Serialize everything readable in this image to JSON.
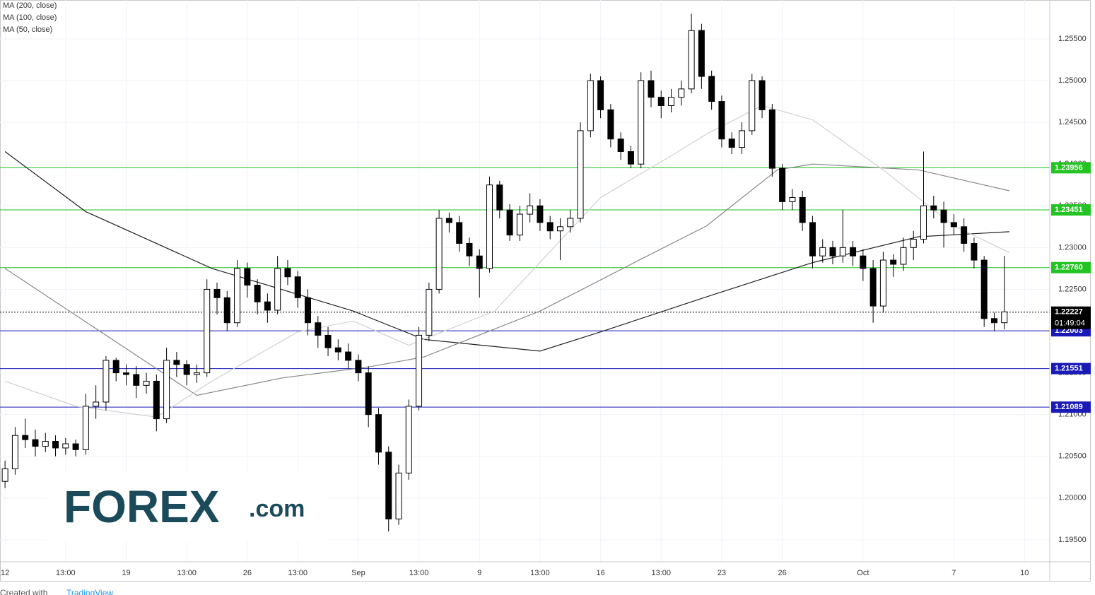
{
  "chart_data": {
    "type": "candlestick",
    "categories": [
      "12",
      null,
      null,
      null,
      null,
      null,
      "13:00",
      null,
      null,
      null,
      null,
      null,
      "19",
      null,
      null,
      null,
      null,
      null,
      "13:00",
      null,
      null,
      null,
      null,
      null,
      "26",
      null,
      null,
      null,
      null,
      "13:00",
      null,
      null,
      null,
      null,
      null,
      "Sep",
      null,
      null,
      null,
      null,
      null,
      "13:00",
      null,
      null,
      null,
      null,
      null,
      "9",
      null,
      null,
      null,
      null,
      null,
      "13:00",
      null,
      null,
      null,
      null,
      null,
      "16",
      null,
      null,
      null,
      null,
      null,
      "13:00",
      null,
      null,
      null,
      null,
      null,
      "23",
      null,
      null,
      null,
      null,
      null,
      "26",
      null,
      null,
      null,
      null,
      null,
      null,
      null,
      "Oct",
      null,
      null,
      null,
      null,
      null,
      null,
      null,
      null,
      "7",
      null,
      null,
      null,
      null,
      null,
      null,
      "10",
      null,
      null
    ],
    "open": [
      1.202,
      1.2035,
      1.2075,
      1.207,
      1.2062,
      1.2068,
      1.206,
      1.2065,
      1.2058,
      1.211,
      1.2115,
      1.2165,
      1.215,
      1.2148,
      1.2135,
      1.214,
      1.2095,
      1.2165,
      1.216,
      1.2148,
      1.215,
      1.225,
      1.224,
      1.221,
      1.2275,
      1.2255,
      1.2235,
      1.2225,
      1.2275,
      1.2265,
      1.224,
      1.221,
      1.2195,
      1.218,
      1.2175,
      1.2165,
      1.215,
      1.21,
      1.2055,
      1.1975,
      1.203,
      1.211,
      1.2195,
      1.225,
      1.2335,
      1.233,
      1.2305,
      1.229,
      1.2275,
      1.2375,
      1.2345,
      1.2315,
      1.234,
      1.235,
      1.233,
      1.232,
      1.2325,
      1.2335,
      1.244,
      1.25,
      1.2465,
      1.243,
      1.2415,
      1.24,
      1.25,
      1.248,
      1.247,
      1.248,
      1.249,
      1.256,
      1.2505,
      1.2475,
      1.243,
      1.242,
      1.244,
      1.25,
      1.2465,
      1.2395,
      1.2355,
      1.236,
      1.233,
      1.229,
      1.23,
      1.229,
      1.23,
      1.229,
      1.2275,
      1.223,
      1.2285,
      1.228,
      1.23,
      1.231,
      1.235,
      1.2345,
      1.233,
      1.2325,
      1.2305,
      1.2285,
      1.2215,
      1.221,
      null,
      null,
      null,
      null
    ],
    "high": [
      1.2045,
      1.2085,
      1.2095,
      1.2082,
      1.2078,
      1.2075,
      1.2072,
      1.207,
      1.2125,
      1.2135,
      1.217,
      1.2168,
      1.216,
      1.2158,
      1.215,
      1.2148,
      1.218,
      1.2175,
      1.2165,
      1.216,
      1.2262,
      1.2258,
      1.2248,
      1.2285,
      1.2282,
      1.2262,
      1.2245,
      1.229,
      1.2285,
      1.2272,
      1.225,
      1.2218,
      1.2205,
      1.219,
      1.2185,
      1.2172,
      1.2158,
      1.2108,
      1.2062,
      1.204,
      1.2118,
      1.2205,
      1.2258,
      1.2345,
      1.2342,
      1.2338,
      1.2312,
      1.2298,
      1.2385,
      1.238,
      1.2352,
      1.235,
      1.2365,
      1.2358,
      1.2338,
      1.2335,
      1.2345,
      1.245,
      1.2508,
      1.2505,
      1.2472,
      1.2438,
      1.2422,
      1.251,
      1.2512,
      1.2488,
      1.249,
      1.25,
      1.258,
      1.2568,
      1.2512,
      1.2482,
      1.2438,
      1.245,
      1.2508,
      1.2505,
      1.2472,
      1.24,
      1.237,
      1.2368,
      1.2338,
      1.231,
      1.2308,
      1.2345,
      1.2308,
      1.2298,
      1.2285,
      1.2295,
      1.2292,
      1.2312,
      1.232,
      1.2415,
      1.2362,
      1.2355,
      1.234,
      1.2335,
      1.2312,
      1.229,
      1.2222,
      1.229,
      null,
      null,
      null,
      null
    ],
    "low": [
      1.2012,
      1.2028,
      1.206,
      1.205,
      1.2055,
      1.205,
      1.2052,
      1.205,
      1.2052,
      1.2095,
      1.2105,
      1.214,
      1.2135,
      1.212,
      1.2125,
      1.208,
      1.209,
      1.2145,
      1.2135,
      1.2138,
      1.2145,
      1.222,
      1.22,
      1.2205,
      1.224,
      1.222,
      1.221,
      1.222,
      1.2255,
      1.2228,
      1.2195,
      1.218,
      1.217,
      1.2165,
      1.2155,
      1.214,
      1.2085,
      1.204,
      1.196,
      1.1968,
      1.2022,
      1.2105,
      1.2188,
      1.2245,
      1.2318,
      1.2295,
      1.2278,
      1.224,
      1.227,
      1.2335,
      1.2308,
      1.2308,
      1.233,
      1.232,
      1.231,
      1.2285,
      1.2318,
      1.233,
      1.2432,
      1.2455,
      1.242,
      1.2405,
      1.2395,
      1.2395,
      1.2468,
      1.2455,
      1.2462,
      1.247,
      1.2485,
      1.249,
      1.2465,
      1.242,
      1.2412,
      1.2412,
      1.2435,
      1.2455,
      1.2385,
      1.2345,
      1.2345,
      1.232,
      1.2275,
      1.2282,
      1.228,
      1.2282,
      1.2278,
      1.226,
      1.221,
      1.2222,
      1.2265,
      1.2272,
      1.2285,
      1.2305,
      1.2335,
      1.23,
      1.2315,
      1.2295,
      1.2275,
      1.2205,
      1.22,
      1.2202,
      null,
      null,
      null,
      null
    ],
    "close": [
      1.2035,
      1.2075,
      1.207,
      1.2062,
      1.2068,
      1.206,
      1.2065,
      1.2058,
      1.211,
      1.2115,
      1.2165,
      1.215,
      1.2148,
      1.2135,
      1.214,
      1.2095,
      1.2165,
      1.216,
      1.2148,
      1.215,
      1.225,
      1.224,
      1.221,
      1.2275,
      1.2255,
      1.2235,
      1.2225,
      1.2275,
      1.2265,
      1.224,
      1.221,
      1.2195,
      1.218,
      1.2175,
      1.2165,
      1.215,
      1.21,
      1.2055,
      1.1975,
      1.203,
      1.211,
      1.2195,
      1.225,
      1.2335,
      1.233,
      1.2305,
      1.229,
      1.2275,
      1.2375,
      1.2345,
      1.2315,
      1.234,
      1.235,
      1.233,
      1.232,
      1.2325,
      1.2335,
      1.244,
      1.25,
      1.2465,
      1.243,
      1.2415,
      1.24,
      1.25,
      1.248,
      1.247,
      1.248,
      1.249,
      1.256,
      1.2505,
      1.2475,
      1.243,
      1.242,
      1.244,
      1.25,
      1.2465,
      1.2395,
      1.2355,
      1.236,
      1.233,
      1.229,
      1.23,
      1.229,
      1.23,
      1.229,
      1.2275,
      1.223,
      1.2285,
      1.228,
      1.23,
      1.231,
      1.235,
      1.2345,
      1.233,
      1.2325,
      1.2305,
      1.2285,
      1.2215,
      1.221,
      1.2223,
      null,
      null,
      null,
      null
    ],
    "up_color": "#ffffff",
    "down_color": "#000000",
    "wick_color": "#000000",
    "series": [
      {
        "name": "MA (200, close)",
        "color": "#222222",
        "x": [
          0,
          8,
          20.5,
          34.5,
          41.5,
          53,
          59,
          69.5,
          80,
          90.5,
          99.5
        ],
        "values": [
          1.2415,
          1.2343,
          1.2275,
          1.2224,
          1.219,
          1.2176,
          1.2199,
          1.2241,
          1.2282,
          1.2313,
          1.2319
        ]
      },
      {
        "name": "MA (100, close)",
        "color": "#888888",
        "x": [
          0,
          19,
          27.5,
          36,
          41.5,
          53,
          62.5,
          69.5,
          76.5,
          80,
          90.5,
          99.5
        ],
        "values": [
          1.2275,
          1.2123,
          1.2144,
          1.2157,
          1.2169,
          1.2224,
          1.2283,
          1.2326,
          1.2393,
          1.24,
          1.2393,
          1.2368
        ]
      },
      {
        "name": "MA (50, close)",
        "color": "#d0d0d0",
        "x": [
          0,
          7,
          15,
          20.5,
          29,
          34.5,
          40,
          48.5,
          59,
          66,
          69.5,
          75,
          80,
          87,
          94,
          99.5
        ],
        "values": [
          1.214,
          1.211,
          1.2097,
          1.214,
          1.2199,
          1.2212,
          1.2183,
          1.2224,
          1.236,
          1.241,
          1.2436,
          1.247,
          1.2453,
          1.2393,
          1.2326,
          1.2294
        ]
      }
    ],
    "levels": [
      {
        "value": 1.23956,
        "color": "#22c322"
      },
      {
        "value": 1.23451,
        "color": "#22c322"
      },
      {
        "value": 1.2276,
        "label": "1.22760",
        "color": "#22c322"
      },
      {
        "value": 1.22003,
        "color": "#1a1ab8"
      },
      {
        "value": 1.21551,
        "color": "#1a1ab8"
      },
      {
        "value": 1.21089,
        "color": "#1a1ab8"
      }
    ],
    "last_price": 1.22227,
    "countdown": "01:49:04",
    "ylim": [
      1.19237,
      1.25965
    ],
    "yticks": [
      {
        "value": 1.195,
        "label": "1.19500"
      },
      {
        "value": 1.2,
        "label": "1.20000"
      },
      {
        "value": 1.205,
        "label": "1.20500"
      },
      {
        "value": 1.21,
        "label": "1.21000"
      },
      {
        "value": 1.215,
        "label": "1.21500"
      },
      {
        "value": 1.22,
        "label": "1.22000"
      },
      {
        "value": 1.225,
        "label": "1.22500"
      },
      {
        "value": 1.23,
        "label": "1.23000"
      },
      {
        "value": 1.235,
        "label": "1.23500"
      },
      {
        "value": 1.24,
        "label": "1.24000"
      },
      {
        "value": 1.245,
        "label": "1.24500"
      },
      {
        "value": 1.25,
        "label": "1.25000"
      },
      {
        "value": 1.255,
        "label": "1.25500"
      }
    ],
    "grid": true
  },
  "logo": {
    "brand": "FOREX",
    "suffix": ".com"
  },
  "footer": {
    "prefix": "Created with",
    "source": "TradingView"
  }
}
